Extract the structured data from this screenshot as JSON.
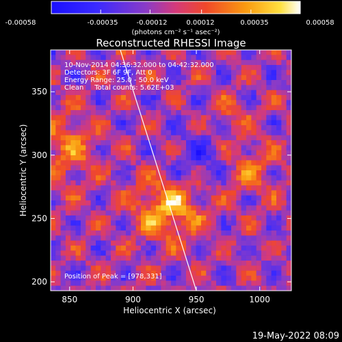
{
  "colorbar": {
    "tick_labels": [
      "-0.00058",
      "-0.00035",
      "-0.00012",
      "0.00012",
      "0.00035",
      "0.00058"
    ],
    "units": "(photons cm⁻² s⁻¹ asec⁻²)",
    "range": [
      -0.00058,
      0.00058
    ]
  },
  "chart_data": {
    "type": "heatmap",
    "title": "Reconstructed RHESSI Image",
    "xlabel": "Heliocentric X (arcsec)",
    "ylabel": "Heliocentric Y (arcsec)",
    "xlim": [
      835,
      1025
    ],
    "ylim": [
      193,
      383
    ],
    "x_ticks": [
      850,
      900,
      950,
      1000
    ],
    "y_ticks": [
      200,
      250,
      300,
      350
    ],
    "limb_line": {
      "x": [
        890,
        950
      ],
      "y": [
        383,
        193
      ]
    },
    "annotations": [
      "10-Nov-2014 04:36:32.000 to 04:42:32.000",
      "Detectors: 3F 6F 9F, Att 0",
      "Energy Range: 25.0 - 50.0 keV",
      "Clean     Total counts: 5.62E+03",
      "Position of Peak = [978,331]"
    ],
    "peak": [
      978,
      331
    ]
  },
  "footer": {
    "timestamp": "19-May-2022 08:09"
  }
}
